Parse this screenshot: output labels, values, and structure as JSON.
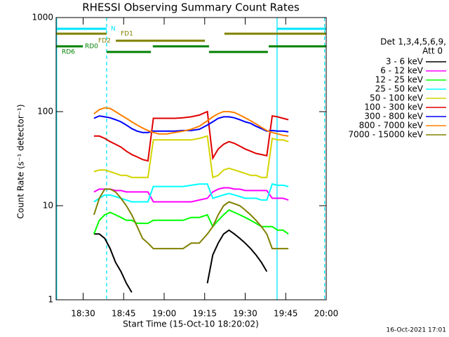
{
  "chart_data": {
    "type": "line",
    "title": "RHESSI Observing Summary Count Rates",
    "xlabel": "Start Time (15-Oct-10 18:20:02)",
    "ylabel": "Count Rate (s⁻¹ detector⁻¹)",
    "legend_header": [
      "Det 1,3,4,5,6,9,",
      "Att 0"
    ],
    "footer": "16-Oct-2021 17:01",
    "log_scale": true,
    "ylim": [
      1,
      1000
    ],
    "yticks": [
      1,
      10,
      100,
      1000
    ],
    "xlim": [
      20,
      120
    ],
    "xticks": [
      {
        "value": 30,
        "label": "18:30"
      },
      {
        "value": 45,
        "label": "18:45"
      },
      {
        "value": 60,
        "label": "19:00"
      },
      {
        "value": 75,
        "label": "19:15"
      },
      {
        "value": 90,
        "label": "19:30"
      },
      {
        "value": 105,
        "label": "19:45"
      },
      {
        "value": 120,
        "label": "20:00"
      }
    ],
    "x": [
      34,
      36,
      38,
      40,
      42,
      44,
      46,
      48,
      50,
      52,
      54,
      56,
      58,
      61,
      64,
      67,
      70,
      73,
      76,
      78,
      80,
      82,
      84,
      86,
      88,
      90,
      92,
      94,
      96,
      98,
      100,
      102,
      104,
      106
    ],
    "series": [
      {
        "name": "3 - 6 keV",
        "color": "#000000",
        "values": [
          5,
          5,
          4.5,
          3.5,
          2.5,
          2,
          1.5,
          1.2,
          null,
          null,
          null,
          null,
          null,
          null,
          null,
          null,
          null,
          null,
          1.5,
          3,
          4,
          5,
          5.5,
          5,
          4.5,
          4,
          3.5,
          3,
          2.5,
          2,
          null,
          null,
          null,
          null
        ]
      },
      {
        "name": "6 - 12 keV",
        "color": "#ff00ff",
        "values": [
          14,
          15,
          15,
          15,
          14.5,
          14.5,
          14,
          14,
          14,
          14,
          14,
          11,
          11,
          11,
          11,
          11,
          11,
          11.5,
          12,
          14,
          15,
          15.5,
          15.5,
          15,
          15,
          14.5,
          14.5,
          14.5,
          14.5,
          14.5,
          12,
          12,
          12,
          11.5
        ]
      },
      {
        "name": "12 - 25 keV",
        "color": "#00ff00",
        "values": [
          5,
          7,
          8,
          8.5,
          8,
          7.5,
          7,
          7,
          6.5,
          6.5,
          6.5,
          7,
          7,
          7,
          7,
          7,
          7.5,
          7.5,
          8,
          6,
          7,
          8,
          9,
          8.5,
          8,
          7.5,
          7,
          6.5,
          6,
          6,
          6,
          5.5,
          5.5,
          5
        ]
      },
      {
        "name": "25 - 50 keV",
        "color": "#00ffff",
        "values": [
          11,
          12,
          13,
          13,
          12.5,
          12,
          11.5,
          11,
          11,
          11,
          11,
          16,
          16,
          16,
          16,
          16,
          16.5,
          17,
          17,
          12,
          12.5,
          13,
          13.5,
          13,
          12.5,
          12,
          12,
          12,
          11.5,
          11.5,
          17,
          16.5,
          16.5,
          16
        ]
      },
      {
        "name": "50 - 100 keV",
        "color": "#d4d400",
        "values": [
          23,
          24,
          24,
          23,
          22,
          21,
          21,
          20,
          20,
          20,
          20,
          50,
          50,
          50,
          50,
          50,
          50,
          52,
          55,
          20,
          21,
          24,
          25,
          24,
          23,
          22,
          21,
          21,
          20,
          20,
          52,
          50,
          50,
          48
        ]
      },
      {
        "name": "100 - 300 keV",
        "color": "#e00000",
        "values": [
          55,
          55,
          52,
          48,
          45,
          42,
          38,
          35,
          33,
          31,
          30,
          85,
          85,
          85,
          85,
          86,
          88,
          92,
          100,
          32,
          40,
          45,
          48,
          46,
          43,
          40,
          38,
          36,
          35,
          34,
          90,
          88,
          85,
          82
        ]
      },
      {
        "name": "300 - 800 keV",
        "color": "#0000ff",
        "values": [
          85,
          90,
          88,
          86,
          82,
          78,
          72,
          66,
          62,
          60,
          60,
          62,
          62,
          62,
          62,
          63,
          63,
          65,
          72,
          78,
          85,
          88,
          88,
          86,
          82,
          78,
          75,
          70,
          66,
          62,
          63,
          62,
          62,
          61
        ]
      },
      {
        "name": "800 - 7000 keV",
        "color": "#ff8000",
        "values": [
          95,
          105,
          110,
          108,
          100,
          92,
          85,
          78,
          72,
          67,
          63,
          60,
          58,
          58,
          60,
          62,
          65,
          70,
          80,
          88,
          95,
          100,
          100,
          98,
          92,
          86,
          80,
          74,
          68,
          63,
          60,
          58,
          56,
          55
        ]
      },
      {
        "name": "7000 - 15000 keV",
        "color": "#808000",
        "values": [
          8,
          12,
          15,
          15,
          14,
          12,
          10,
          8,
          6,
          4.5,
          4,
          3.5,
          3.5,
          3.5,
          3.5,
          3.5,
          4,
          4,
          5,
          6,
          8,
          10,
          11,
          10.5,
          10,
          9,
          8,
          7,
          6,
          5,
          3.5,
          3.5,
          3.5,
          3.5
        ]
      }
    ],
    "flags": [
      {
        "label": "N",
        "color": "#00e5ff",
        "segments": [
          [
            20,
            38.7
          ],
          [
            101.8,
            120
          ]
        ]
      },
      {
        "label": "FD1",
        "color": "#808000",
        "segments": [
          [
            20,
            38.7
          ],
          [
            82.3,
            120
          ]
        ]
      },
      {
        "label": "FD2",
        "color": "#808000",
        "segments": [
          [
            42.1,
            75.1
          ]
        ]
      },
      {
        "label": "RD0",
        "color": "#008000",
        "segments": [
          [
            20,
            29.9
          ],
          [
            55.8,
            76.6
          ],
          [
            98.7,
            120
          ]
        ]
      },
      {
        "label": "RD6",
        "color": "#008000",
        "segments": [
          [
            38.7,
            55.1
          ],
          [
            76.6,
            98.4
          ]
        ]
      }
    ],
    "vlines": [
      {
        "x": 20.2,
        "style": "solid",
        "color": "#00e5ff"
      },
      {
        "x": 38.7,
        "style": "dashed",
        "color": "#00e5ff"
      },
      {
        "x": 101.8,
        "style": "solid",
        "color": "#00e5ff"
      },
      {
        "x": 119.4,
        "style": "dashed",
        "color": "#00e5ff"
      }
    ]
  }
}
